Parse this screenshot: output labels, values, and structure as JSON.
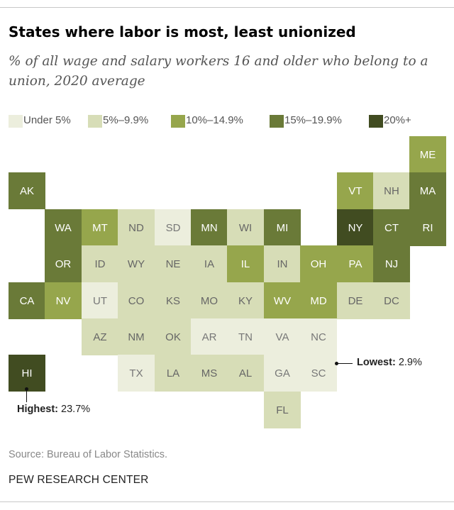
{
  "title": "States where labor is most, least unionized",
  "subtitle": "% of all wage and salary workers 16 and older who belong to a union, 2020 average",
  "legend": [
    {
      "label": "Under 5%",
      "color": "#eceedd"
    },
    {
      "label": "5%–9.9%",
      "color": "#d7ddb7"
    },
    {
      "label": "10%–14.9%",
      "color": "#96a64c"
    },
    {
      "label": "15%–19.9%",
      "color": "#6a7a38"
    },
    {
      "label": "20%+",
      "color": "#414c21"
    }
  ],
  "chart_data": {
    "type": "tile-map",
    "bins": [
      "Under 5%",
      "5%–9.9%",
      "10%–14.9%",
      "15%–19.9%",
      "20%+"
    ],
    "states": [
      {
        "abbr": "ME",
        "bin": 2,
        "row": 0,
        "col": 11
      },
      {
        "abbr": "AK",
        "bin": 3,
        "row": 1,
        "col": 0
      },
      {
        "abbr": "VT",
        "bin": 2,
        "row": 1,
        "col": 9
      },
      {
        "abbr": "NH",
        "bin": 1,
        "row": 1,
        "col": 10
      },
      {
        "abbr": "MA",
        "bin": 3,
        "row": 1,
        "col": 11
      },
      {
        "abbr": "WA",
        "bin": 3,
        "row": 2,
        "col": 1
      },
      {
        "abbr": "MT",
        "bin": 2,
        "row": 2,
        "col": 2
      },
      {
        "abbr": "ND",
        "bin": 1,
        "row": 2,
        "col": 3
      },
      {
        "abbr": "SD",
        "bin": 0,
        "row": 2,
        "col": 4
      },
      {
        "abbr": "MN",
        "bin": 3,
        "row": 2,
        "col": 5
      },
      {
        "abbr": "WI",
        "bin": 1,
        "row": 2,
        "col": 6
      },
      {
        "abbr": "MI",
        "bin": 3,
        "row": 2,
        "col": 7
      },
      {
        "abbr": "NY",
        "bin": 4,
        "row": 2,
        "col": 9
      },
      {
        "abbr": "CT",
        "bin": 3,
        "row": 2,
        "col": 10
      },
      {
        "abbr": "RI",
        "bin": 3,
        "row": 2,
        "col": 11
      },
      {
        "abbr": "OR",
        "bin": 3,
        "row": 3,
        "col": 1
      },
      {
        "abbr": "ID",
        "bin": 1,
        "row": 3,
        "col": 2
      },
      {
        "abbr": "WY",
        "bin": 1,
        "row": 3,
        "col": 3
      },
      {
        "abbr": "NE",
        "bin": 1,
        "row": 3,
        "col": 4
      },
      {
        "abbr": "IA",
        "bin": 1,
        "row": 3,
        "col": 5
      },
      {
        "abbr": "IL",
        "bin": 2,
        "row": 3,
        "col": 6
      },
      {
        "abbr": "IN",
        "bin": 1,
        "row": 3,
        "col": 7
      },
      {
        "abbr": "OH",
        "bin": 2,
        "row": 3,
        "col": 8
      },
      {
        "abbr": "PA",
        "bin": 2,
        "row": 3,
        "col": 9
      },
      {
        "abbr": "NJ",
        "bin": 3,
        "row": 3,
        "col": 10
      },
      {
        "abbr": "CA",
        "bin": 3,
        "row": 4,
        "col": 0
      },
      {
        "abbr": "NV",
        "bin": 2,
        "row": 4,
        "col": 1
      },
      {
        "abbr": "UT",
        "bin": 0,
        "row": 4,
        "col": 2
      },
      {
        "abbr": "CO",
        "bin": 1,
        "row": 4,
        "col": 3
      },
      {
        "abbr": "KS",
        "bin": 1,
        "row": 4,
        "col": 4
      },
      {
        "abbr": "MO",
        "bin": 1,
        "row": 4,
        "col": 5
      },
      {
        "abbr": "KY",
        "bin": 1,
        "row": 4,
        "col": 6
      },
      {
        "abbr": "WV",
        "bin": 2,
        "row": 4,
        "col": 7
      },
      {
        "abbr": "MD",
        "bin": 2,
        "row": 4,
        "col": 8
      },
      {
        "abbr": "DE",
        "bin": 1,
        "row": 4,
        "col": 9
      },
      {
        "abbr": "DC",
        "bin": 1,
        "row": 4,
        "col": 10
      },
      {
        "abbr": "AZ",
        "bin": 1,
        "row": 5,
        "col": 2
      },
      {
        "abbr": "NM",
        "bin": 1,
        "row": 5,
        "col": 3
      },
      {
        "abbr": "OK",
        "bin": 1,
        "row": 5,
        "col": 4
      },
      {
        "abbr": "AR",
        "bin": 0,
        "row": 5,
        "col": 5
      },
      {
        "abbr": "TN",
        "bin": 0,
        "row": 5,
        "col": 6
      },
      {
        "abbr": "VA",
        "bin": 0,
        "row": 5,
        "col": 7
      },
      {
        "abbr": "NC",
        "bin": 0,
        "row": 5,
        "col": 8
      },
      {
        "abbr": "HI",
        "bin": 4,
        "row": 6,
        "col": 0
      },
      {
        "abbr": "TX",
        "bin": 0,
        "row": 6,
        "col": 3
      },
      {
        "abbr": "LA",
        "bin": 1,
        "row": 6,
        "col": 4
      },
      {
        "abbr": "MS",
        "bin": 1,
        "row": 6,
        "col": 5
      },
      {
        "abbr": "AL",
        "bin": 1,
        "row": 6,
        "col": 6
      },
      {
        "abbr": "GA",
        "bin": 0,
        "row": 6,
        "col": 7
      },
      {
        "abbr": "SC",
        "bin": 0,
        "row": 6,
        "col": 8
      },
      {
        "abbr": "FL",
        "bin": 1,
        "row": 7,
        "col": 7
      }
    ],
    "annotations": {
      "highest": {
        "state": "HI",
        "label": "Highest:",
        "value": "23.7%"
      },
      "lowest": {
        "state": "SC",
        "label": "Lowest:",
        "value": "2.9%"
      }
    }
  },
  "footer": {
    "source": "Source: Bureau of Labor Statistics.",
    "brand": "PEW RESEARCH CENTER"
  }
}
